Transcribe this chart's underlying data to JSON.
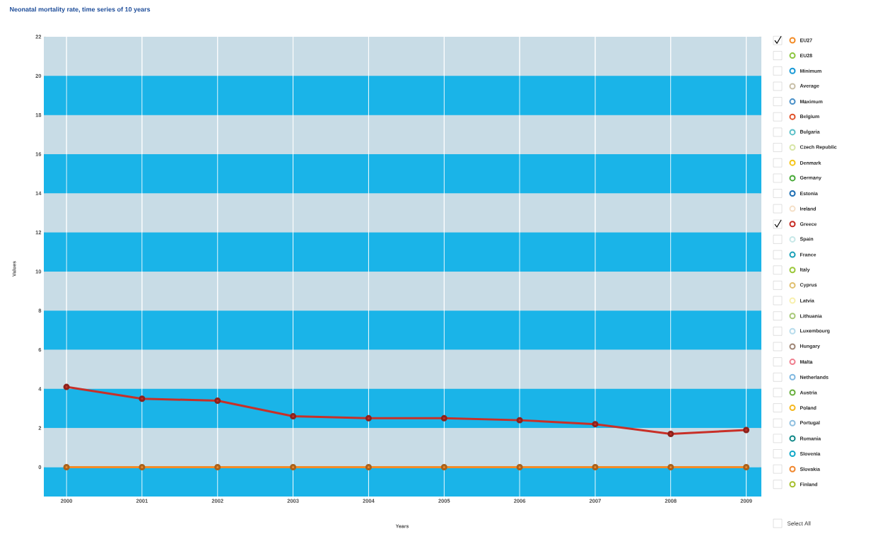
{
  "chart_data": {
    "type": "line",
    "title": "Neonatal mortality rate, time series of 10 years",
    "xlabel": "Years",
    "ylabel": "Values",
    "x": [
      2000,
      2001,
      2002,
      2003,
      2004,
      2005,
      2006,
      2007,
      2008,
      2009
    ],
    "xlim": [
      1999.7,
      2009.2
    ],
    "xticks": [
      2000,
      2001,
      2002,
      2003,
      2004,
      2005,
      2006,
      2007,
      2008,
      2009
    ],
    "ylim": [
      -1.5,
      22
    ],
    "yticks": [
      0,
      2,
      4,
      6,
      8,
      10,
      12,
      14,
      16,
      18,
      20,
      22
    ],
    "grid": "x",
    "marker": "circle",
    "line_style": "solid",
    "legend": "right",
    "bands": [
      {
        "axis": "y",
        "from": -1.5,
        "to": 0,
        "color": "#1ab4e8"
      },
      {
        "axis": "y",
        "from": 2,
        "to": 4,
        "color": "#1ab4e8"
      },
      {
        "axis": "y",
        "from": 6,
        "to": 8,
        "color": "#1ab4e8"
      },
      {
        "axis": "y",
        "from": 10,
        "to": 12,
        "color": "#1ab4e8"
      },
      {
        "axis": "y",
        "from": 14,
        "to": 16,
        "color": "#1ab4e8"
      },
      {
        "axis": "y",
        "from": 18,
        "to": 20,
        "color": "#1ab4e8"
      }
    ],
    "annotations": [
      "Select All"
    ],
    "series": [
      {
        "name": "EU27",
        "color": "#f28c28",
        "values": [
          0,
          0,
          0,
          0,
          0,
          0,
          0,
          0,
          0,
          0
        ]
      },
      {
        "name": "EU28",
        "color": "#8dc63f",
        "values": [
          null,
          null,
          null,
          null,
          null,
          null,
          null,
          null,
          null,
          null
        ]
      },
      {
        "name": "Minimum",
        "color": "#1a9ad6",
        "values": [
          null,
          null,
          null,
          null,
          null,
          null,
          null,
          null,
          null,
          null
        ]
      },
      {
        "name": "Average",
        "color": "#c8bfa8",
        "values": [
          null,
          null,
          null,
          null,
          null,
          null,
          null,
          null,
          null,
          null
        ]
      },
      {
        "name": "Maximum",
        "color": "#4a90c8",
        "values": [
          null,
          null,
          null,
          null,
          null,
          null,
          null,
          null,
          null,
          null
        ]
      },
      {
        "name": "Belgium",
        "color": "#e0522a",
        "values": [
          null,
          null,
          null,
          null,
          null,
          null,
          null,
          null,
          null,
          null
        ]
      },
      {
        "name": "Bulgaria",
        "color": "#5bc0c8",
        "values": [
          null,
          null,
          null,
          null,
          null,
          null,
          null,
          null,
          null,
          null
        ]
      },
      {
        "name": "Czech Republic",
        "color": "#d8e6a8",
        "values": [
          null,
          null,
          null,
          null,
          null,
          null,
          null,
          null,
          null,
          null
        ]
      },
      {
        "name": "Denmark",
        "color": "#f5c518",
        "values": [
          null,
          null,
          null,
          null,
          null,
          null,
          null,
          null,
          null,
          null
        ]
      },
      {
        "name": "Germany",
        "color": "#4aaa3a",
        "values": [
          null,
          null,
          null,
          null,
          null,
          null,
          null,
          null,
          null,
          null
        ]
      },
      {
        "name": "Estonia",
        "color": "#1f6fb4",
        "values": [
          null,
          null,
          null,
          null,
          null,
          null,
          null,
          null,
          null,
          null
        ]
      },
      {
        "name": "Ireland",
        "color": "#f5e0c8",
        "values": [
          null,
          null,
          null,
          null,
          null,
          null,
          null,
          null,
          null,
          null
        ]
      },
      {
        "name": "Greece",
        "color": "#c83028",
        "values": [
          4.1,
          3.5,
          3.4,
          2.6,
          2.5,
          2.5,
          2.4,
          2.2,
          1.7,
          1.9
        ]
      },
      {
        "name": "Spain",
        "color": "#c8e8e8",
        "values": [
          null,
          null,
          null,
          null,
          null,
          null,
          null,
          null,
          null,
          null
        ]
      },
      {
        "name": "France",
        "color": "#1aa0b8",
        "values": [
          null,
          null,
          null,
          null,
          null,
          null,
          null,
          null,
          null,
          null
        ]
      },
      {
        "name": "Italy",
        "color": "#9cc83c",
        "values": [
          null,
          null,
          null,
          null,
          null,
          null,
          null,
          null,
          null,
          null
        ]
      },
      {
        "name": "Cyprus",
        "color": "#e0c070",
        "values": [
          null,
          null,
          null,
          null,
          null,
          null,
          null,
          null,
          null,
          null
        ]
      },
      {
        "name": "Latvia",
        "color": "#f8f0b0",
        "values": [
          null,
          null,
          null,
          null,
          null,
          null,
          null,
          null,
          null,
          null
        ]
      },
      {
        "name": "Lithuania",
        "color": "#a8c878",
        "values": [
          null,
          null,
          null,
          null,
          null,
          null,
          null,
          null,
          null,
          null
        ]
      },
      {
        "name": "Luxembourg",
        "color": "#b8dcec",
        "values": [
          null,
          null,
          null,
          null,
          null,
          null,
          null,
          null,
          null,
          null
        ]
      },
      {
        "name": "Hungary",
        "color": "#a08878",
        "values": [
          null,
          null,
          null,
          null,
          null,
          null,
          null,
          null,
          null,
          null
        ]
      },
      {
        "name": "Malta",
        "color": "#f08090",
        "values": [
          null,
          null,
          null,
          null,
          null,
          null,
          null,
          null,
          null,
          null
        ]
      },
      {
        "name": "Netherlands",
        "color": "#80b8e0",
        "values": [
          null,
          null,
          null,
          null,
          null,
          null,
          null,
          null,
          null,
          null
        ]
      },
      {
        "name": "Austria",
        "color": "#6ab040",
        "values": [
          null,
          null,
          null,
          null,
          null,
          null,
          null,
          null,
          null,
          null
        ]
      },
      {
        "name": "Poland",
        "color": "#f5b820",
        "values": [
          null,
          null,
          null,
          null,
          null,
          null,
          null,
          null,
          null,
          null
        ]
      },
      {
        "name": "Portugal",
        "color": "#90c0e0",
        "values": [
          null,
          null,
          null,
          null,
          null,
          null,
          null,
          null,
          null,
          null
        ]
      },
      {
        "name": "Romania",
        "color": "#108888",
        "values": [
          null,
          null,
          null,
          null,
          null,
          null,
          null,
          null,
          null,
          null
        ]
      },
      {
        "name": "Slovenia",
        "color": "#10a8c8",
        "values": [
          null,
          null,
          null,
          null,
          null,
          null,
          null,
          null,
          null,
          null
        ]
      },
      {
        "name": "Slovakia",
        "color": "#f08830",
        "values": [
          null,
          null,
          null,
          null,
          null,
          null,
          null,
          null,
          null,
          null
        ]
      },
      {
        "name": "Finland",
        "color": "#a8c030",
        "values": [
          null,
          null,
          null,
          null,
          null,
          null,
          null,
          null,
          null,
          null
        ]
      }
    ]
  }
}
